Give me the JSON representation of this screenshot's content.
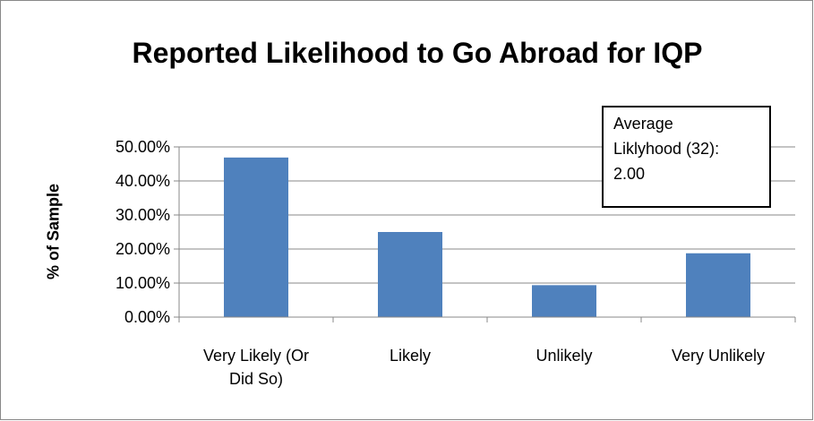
{
  "chart_data": {
    "type": "bar",
    "title": "Reported Likelihood to Go Abroad for IQP",
    "y_label": "% of Sample",
    "annotation": "Average Liklyhood (32): 2.00",
    "categories": [
      "Very Likely (Or Did So)",
      "Likely",
      "Unlikely",
      "Very Unlikely"
    ],
    "values": [
      46.88,
      25,
      9.38,
      18.75
    ],
    "color": "#4f81bd",
    "ylim": [
      0,
      50
    ],
    "yticks": [
      {
        "value": 0,
        "label": "0.00%"
      },
      {
        "value": 10,
        "label": "10.00%"
      },
      {
        "value": 20,
        "label": "20.00%"
      },
      {
        "value": 30,
        "label": "30.00%"
      },
      {
        "value": 40,
        "label": "40.00%"
      },
      {
        "value": 50,
        "label": "50.00%"
      }
    ],
    "grid": true
  }
}
